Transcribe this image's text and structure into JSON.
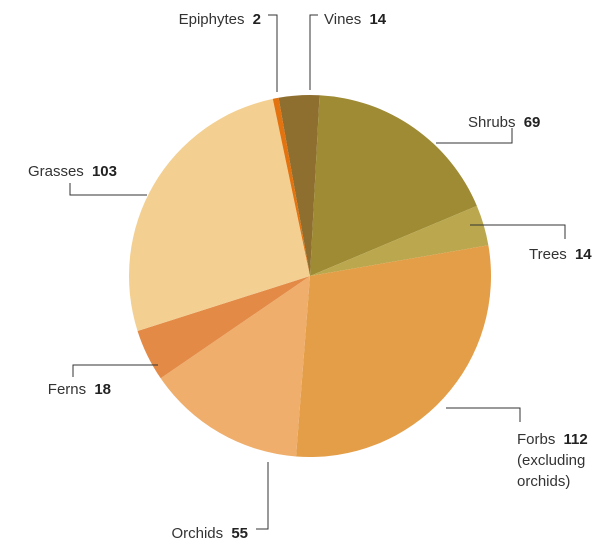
{
  "chart_data": {
    "type": "pie",
    "title": "",
    "slices": [
      {
        "label": "Vines",
        "value": 14,
        "color": "#8E6F30"
      },
      {
        "label": "Shrubs",
        "value": 69,
        "color": "#9E8B34"
      },
      {
        "label": "Trees",
        "value": 14,
        "color": "#BBA84E"
      },
      {
        "label": "Forbs",
        "value": 112,
        "extra": [
          "(excluding",
          "orchids)"
        ],
        "color": "#E49E47"
      },
      {
        "label": "Orchids",
        "value": 55,
        "color": "#EFAE6C"
      },
      {
        "label": "Ferns",
        "value": 18,
        "color": "#E38A47"
      },
      {
        "label": "Grasses",
        "value": 103,
        "color": "#F3D092"
      },
      {
        "label": "Epiphytes",
        "value": 2,
        "color": "#E2730F"
      }
    ]
  }
}
